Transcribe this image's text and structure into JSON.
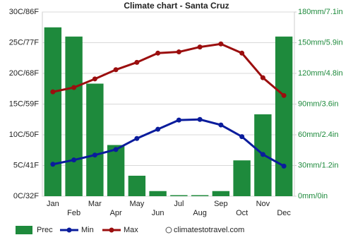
{
  "chart_data": {
    "type": "bar",
    "title": "Climate chart - Santa Cruz",
    "categories": [
      "Jan",
      "Feb",
      "Mar",
      "Apr",
      "May",
      "Jun",
      "Jul",
      "Aug",
      "Sep",
      "Oct",
      "Nov",
      "Dec"
    ],
    "series": [
      {
        "name": "Prec",
        "type": "bar",
        "axis": "y2",
        "color": "#1e8a3c",
        "values": [
          165,
          156,
          110,
          50,
          20,
          5,
          1,
          1,
          5,
          35,
          80,
          156
        ]
      },
      {
        "name": "Min",
        "type": "line",
        "color": "#0a1c9c",
        "values": [
          5.2,
          5.9,
          6.7,
          7.6,
          9.4,
          10.9,
          12.4,
          12.5,
          11.6,
          9.7,
          6.8,
          4.9
        ]
      },
      {
        "name": "Max",
        "type": "line",
        "color": "#9b0e0e",
        "values": [
          17.0,
          17.7,
          19.1,
          20.6,
          21.8,
          23.3,
          23.5,
          24.3,
          24.8,
          23.3,
          19.3,
          16.4
        ]
      }
    ],
    "ylim": [
      0,
      30
    ],
    "yticks": [
      {
        "value": 0,
        "label": "0C/32F"
      },
      {
        "value": 5,
        "label": "5C/41F"
      },
      {
        "value": 10,
        "label": "10C/50F"
      },
      {
        "value": 15,
        "label": "15C/59F"
      },
      {
        "value": 20,
        "label": "20C/68F"
      },
      {
        "value": 25,
        "label": "25C/77F"
      },
      {
        "value": 30,
        "label": "30C/86F"
      }
    ],
    "y2lim": [
      0,
      180
    ],
    "y2ticks": [
      {
        "value": 0,
        "label": "0mm/0in"
      },
      {
        "value": 30,
        "label": "30mm/1.2in"
      },
      {
        "value": 60,
        "label": "60mm/2.4in"
      },
      {
        "value": 90,
        "label": "90mm/3.6in"
      },
      {
        "value": 120,
        "label": "120mm/4.8in"
      },
      {
        "value": 150,
        "label": "150mm/5.9in"
      },
      {
        "value": 180,
        "label": "180mm/7.1in"
      }
    ],
    "y2color": "#1e8a3c",
    "grid": true,
    "source": "climatestotravel.com"
  }
}
